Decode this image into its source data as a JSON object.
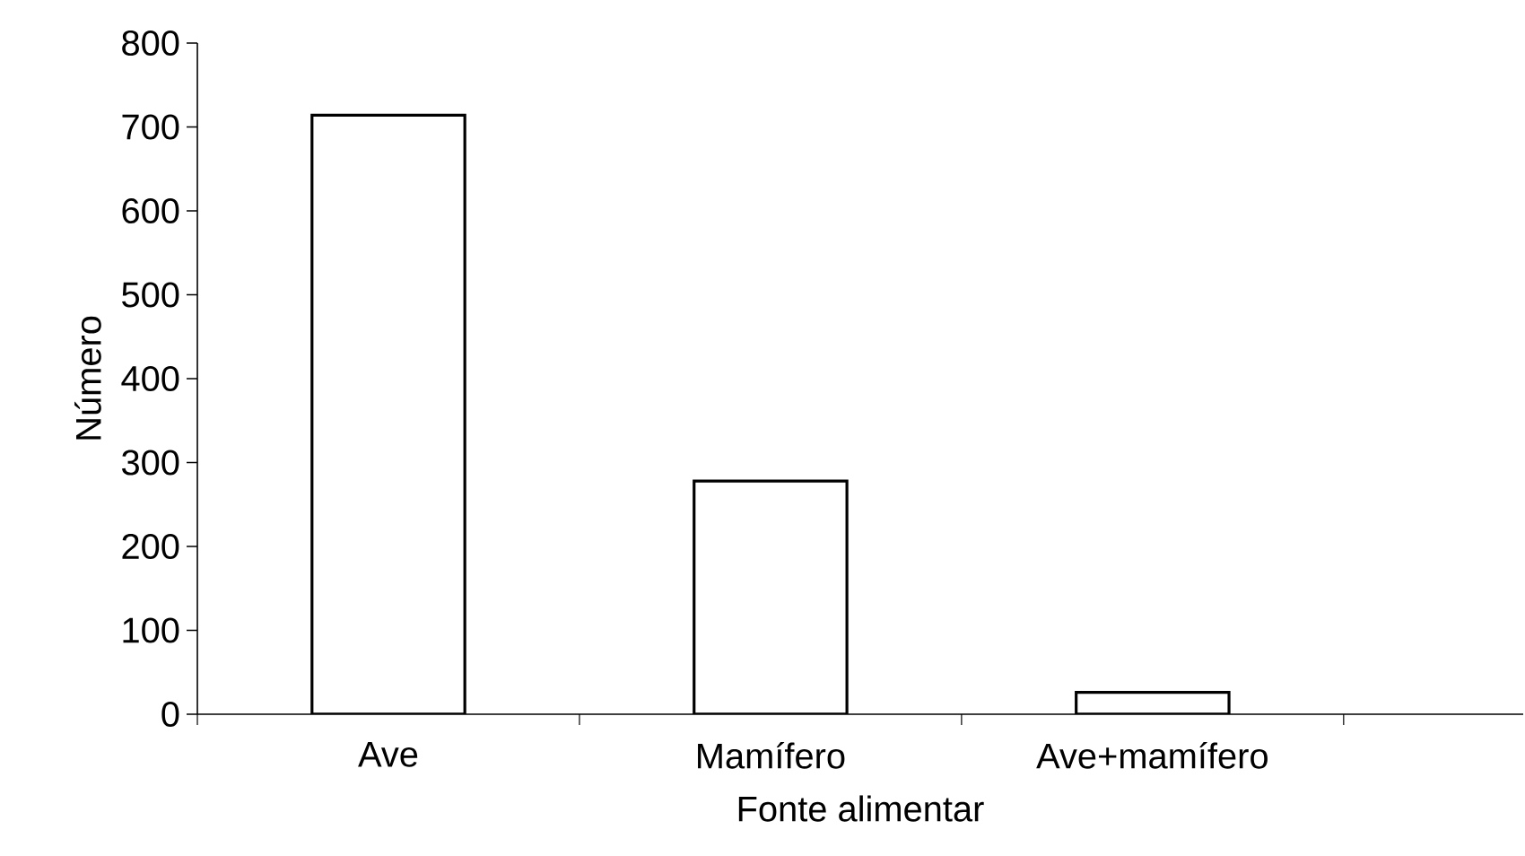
{
  "chart_data": {
    "type": "bar",
    "xlabel": "Fonte alimentar",
    "ylabel": "Número",
    "categories": [
      "Ave",
      "Mamífero",
      "Ave+mamífero"
    ],
    "values": [
      714,
      278,
      26
    ],
    "color": "#ffffff",
    "ylim": [
      0,
      800
    ],
    "yticks": [
      0,
      100,
      200,
      300,
      400,
      500,
      600,
      700,
      800
    ],
    "grid": false
  }
}
